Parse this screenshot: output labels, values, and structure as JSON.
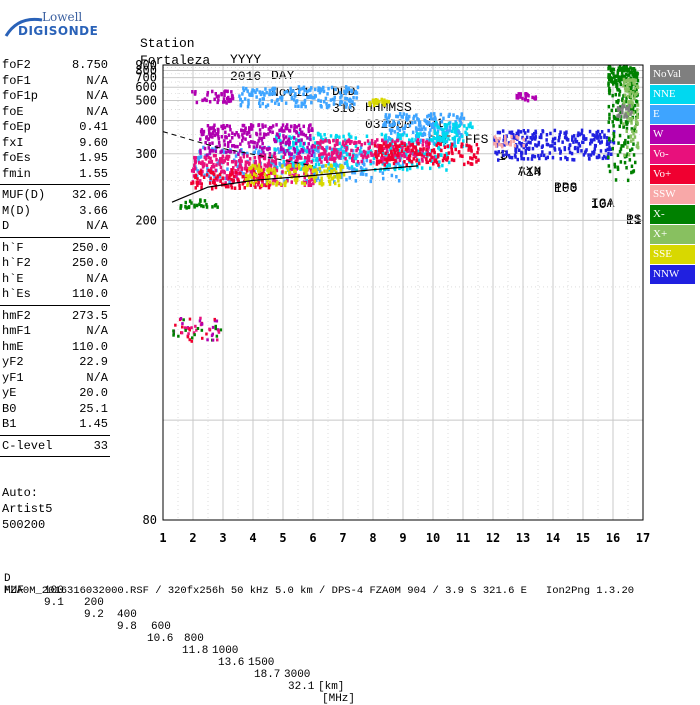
{
  "logo": {
    "line1": "Lowell",
    "line2": "DIGISONDE"
  },
  "header": {
    "row1": [
      "Station",
      "YYYY",
      "DAY",
      "DDD",
      "HHMMSS",
      "P1",
      "FFS",
      "S",
      "AXN",
      "PPS",
      "IGA",
      "PS"
    ],
    "row2": [
      "Fortaleza",
      "2016",
      "Nov11",
      "316",
      "032000",
      "RSF",
      "1",
      "714",
      "100",
      "10+",
      "11"
    ]
  },
  "params": {
    "group1": [
      {
        "name": "foF2",
        "value": "8.750"
      },
      {
        "name": "foF1",
        "value": "N/A"
      },
      {
        "name": "foF1p",
        "value": "N/A"
      },
      {
        "name": "foE",
        "value": "N/A"
      },
      {
        "name": "foEp",
        "value": "0.41"
      },
      {
        "name": "fxI",
        "value": "9.60"
      },
      {
        "name": "foEs",
        "value": "1.95"
      },
      {
        "name": "fmin",
        "value": "1.55"
      }
    ],
    "group2": [
      {
        "name": "MUF(D)",
        "value": "32.06"
      },
      {
        "name": "M(D)",
        "value": "3.66"
      },
      {
        "name": "D",
        "value": "N/A"
      }
    ],
    "group3": [
      {
        "name": "h`F",
        "value": "250.0"
      },
      {
        "name": "h`F2",
        "value": "250.0"
      },
      {
        "name": "h`E",
        "value": "N/A"
      },
      {
        "name": "h`Es",
        "value": "110.0"
      }
    ],
    "group4": [
      {
        "name": "hmF2",
        "value": "273.5"
      },
      {
        "name": "hmF1",
        "value": "N/A"
      },
      {
        "name": "hmE",
        "value": "110.0"
      },
      {
        "name": "yF2",
        "value": "22.9"
      },
      {
        "name": "yF1",
        "value": "N/A"
      },
      {
        "name": "yE",
        "value": "20.0"
      },
      {
        "name": "B0",
        "value": "25.1"
      },
      {
        "name": "B1",
        "value": "1.45"
      }
    ],
    "group5": [
      {
        "name": "C-level",
        "value": "33"
      }
    ]
  },
  "auto": {
    "line1": "Auto:",
    "line2": "Artist5",
    "line3": "500200"
  },
  "legend": [
    {
      "label": "NoVal",
      "color": "#7f7f7f"
    },
    {
      "label": "NNE",
      "color": "#00d8f0"
    },
    {
      "label": "E",
      "color": "#3ea4ff"
    },
    {
      "label": "W",
      "color": "#b000b0"
    },
    {
      "label": "Vo-",
      "color": "#e8107c"
    },
    {
      "label": "Vo+",
      "color": "#f00030"
    },
    {
      "label": "SSW",
      "color": "#f8a8a8"
    },
    {
      "label": "X-",
      "color": "#008000"
    },
    {
      "label": "X+",
      "color": "#88c060"
    },
    {
      "label": "SSE",
      "color": "#d8d800"
    },
    {
      "label": "NNW",
      "color": "#2020e0"
    }
  ],
  "footer": {
    "d_row": [
      "D",
      "100",
      "200",
      "400",
      "600",
      "800",
      "1000",
      "1500",
      "3000",
      "[km]"
    ],
    "muf_row": [
      "MUF",
      "9.1",
      "9.2",
      "9.8",
      "10.6",
      "11.8",
      "13.6",
      "18.7",
      "32.1",
      "[MHz]"
    ],
    "file_line": "FZA0M_2016316032000.RSF / 320fx256h 50 kHz 5.0 km / DPS-4 FZA0M 904 / 3.9 S 321.6 E   Ion2Png 1.3.20"
  },
  "chart_data": {
    "type": "scatter",
    "title": "",
    "xlabel": "",
    "ylabel": "",
    "xlim": [
      1,
      17
    ],
    "ylim": [
      80,
      900
    ],
    "y_scale": "reciprocal",
    "x_ticks": [
      1,
      2,
      3,
      4,
      5,
      6,
      7,
      8,
      9,
      10,
      11,
      12,
      13,
      14,
      15,
      16,
      17
    ],
    "y_ticks": [
      80,
      200,
      300,
      400,
      500,
      600,
      700,
      800,
      900
    ],
    "grid": true,
    "legend_position": "right",
    "series": [
      {
        "name": "E",
        "color": "#3ea4ff",
        "regions": [
          [
            2.0,
            9.0,
            250,
            320
          ],
          [
            3.5,
            7.5,
            470,
            620
          ],
          [
            8.3,
            11.0,
            330,
            440
          ]
        ]
      },
      {
        "name": "NNE",
        "color": "#00d8f0",
        "regions": [
          [
            4.5,
            10.5,
            270,
            360
          ],
          [
            10.0,
            11.3,
            320,
            400
          ]
        ]
      },
      {
        "name": "W",
        "color": "#b000b0",
        "regions": [
          [
            2.2,
            6.0,
            300,
            390
          ],
          [
            12.7,
            13.4,
            510,
            560
          ],
          [
            1.9,
            3.3,
            490,
            590
          ]
        ]
      },
      {
        "name": "Vo-",
        "color": "#e8107c",
        "regions": [
          [
            1.9,
            6.0,
            245,
            300
          ],
          [
            6.0,
            10.0,
            285,
            340
          ]
        ]
      },
      {
        "name": "Vo+",
        "color": "#f00030",
        "regions": [
          [
            1.9,
            4.5,
            240,
            270
          ],
          [
            8.0,
            11.5,
            280,
            330
          ]
        ]
      },
      {
        "name": "NNW",
        "color": "#2020e0",
        "regions": [
          [
            12.0,
            16.0,
            290,
            370
          ]
        ]
      },
      {
        "name": "SSE",
        "color": "#d8d800",
        "regions": [
          [
            7.8,
            8.5,
            480,
            520
          ],
          [
            3.7,
            7.0,
            245,
            280
          ]
        ]
      },
      {
        "name": "X-",
        "color": "#008000",
        "regions": [
          [
            15.8,
            16.8,
            250,
            900
          ],
          [
            1.5,
            2.8,
            215,
            225
          ]
        ]
      },
      {
        "name": "X+",
        "color": "#88c060",
        "regions": [
          [
            16.3,
            16.8,
            300,
            700
          ]
        ]
      },
      {
        "name": "SSW",
        "color": "#f8a8a8",
        "regions": [
          [
            12.0,
            13.0,
            320,
            350
          ]
        ]
      },
      {
        "name": "NoVal",
        "color": "#7f7f7f",
        "regions": [
          [
            16.1,
            16.6,
            420,
            480
          ]
        ]
      }
    ],
    "es_trace": {
      "x": [
        1.3,
        2.9
      ],
      "y": [
        125,
        135
      ]
    },
    "profile_line": {
      "x": [
        1.3,
        2.5,
        4.0,
        6.0,
        8.0,
        9.5
      ],
      "y": [
        220,
        240,
        250,
        258,
        268,
        275
      ]
    },
    "dashed_line": {
      "x": [
        1.0,
        2.8,
        6.0
      ],
      "y": [
        360,
        315,
        275
      ]
    }
  }
}
